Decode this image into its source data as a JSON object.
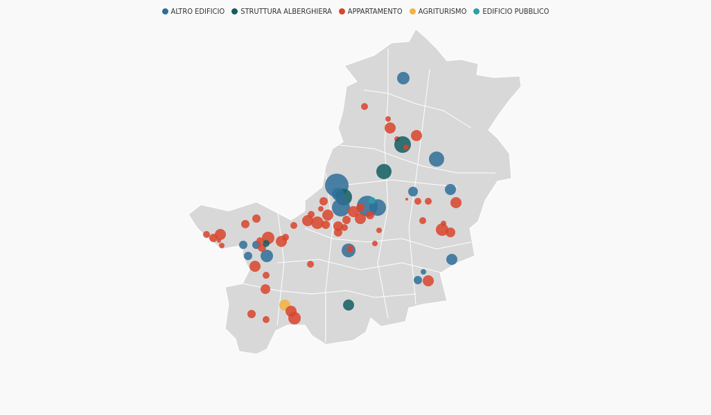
{
  "legend": [
    {
      "label": "ALTRO EDIFICIO",
      "color": "#2e6e99"
    },
    {
      "label": "STRUTTURA ALBERGHIERA",
      "color": "#135e60"
    },
    {
      "label": "APPARTAMENTO",
      "color": "#d9442b"
    },
    {
      "label": "AGRITURISMO",
      "color": "#f4b23e"
    },
    {
      "label": "EDIFICIO PUBBLICO",
      "color": "#2aa0a7"
    }
  ]
}
